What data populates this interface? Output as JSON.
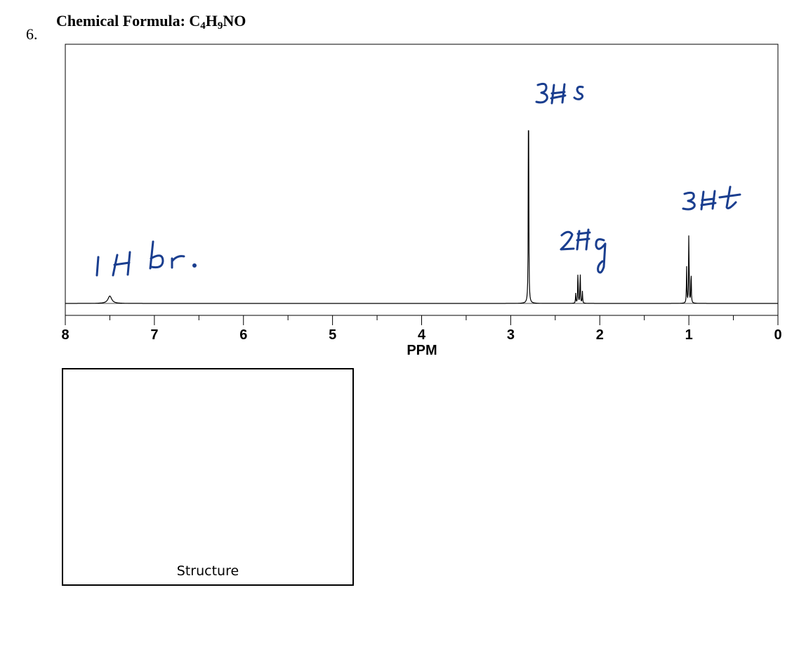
{
  "question_number": "6.",
  "formula": {
    "prefix": "Chemical Formula: ",
    "parts": [
      {
        "t": "C",
        "sub": false
      },
      {
        "t": "4",
        "sub": true
      },
      {
        "t": "H",
        "sub": false
      },
      {
        "t": "9",
        "sub": true
      },
      {
        "t": "NO",
        "sub": false
      }
    ]
  },
  "structure_label": "Structure",
  "colors": {
    "annotation": "#1a3e8f",
    "spectrum": "#000000",
    "baseline": "#555555"
  },
  "chart_data": {
    "type": "line",
    "xlabel": "PPM",
    "xlim": [
      8,
      0
    ],
    "x_reversed": true,
    "xticks": [
      8,
      7,
      6,
      5,
      4,
      3,
      2,
      1,
      0
    ],
    "minor_ticks": true,
    "ylim": [
      0,
      1
    ],
    "grid": false,
    "peaks": [
      {
        "ppm": 7.5,
        "height": 0.03,
        "width": 0.025
      },
      {
        "ppm": 2.8,
        "height": 1.0,
        "width": 0.003
      },
      {
        "ppm": 2.27,
        "height": 0.04,
        "width": 0.003
      },
      {
        "ppm": 2.245,
        "height": 0.135,
        "width": 0.003
      },
      {
        "ppm": 2.22,
        "height": 0.135,
        "width": 0.003
      },
      {
        "ppm": 2.195,
        "height": 0.048,
        "width": 0.003
      },
      {
        "ppm": 1.025,
        "height": 0.148,
        "width": 0.003
      },
      {
        "ppm": 1.0,
        "height": 0.3,
        "width": 0.003
      },
      {
        "ppm": 0.975,
        "height": 0.138,
        "width": 0.003
      }
    ],
    "annotations": [
      {
        "text": "1H br.",
        "ppm": 7.5
      },
      {
        "text": "3H s",
        "ppm": 2.8
      },
      {
        "text": "2H q",
        "ppm": 2.23
      },
      {
        "text": "3H t",
        "ppm": 1.0
      }
    ]
  }
}
